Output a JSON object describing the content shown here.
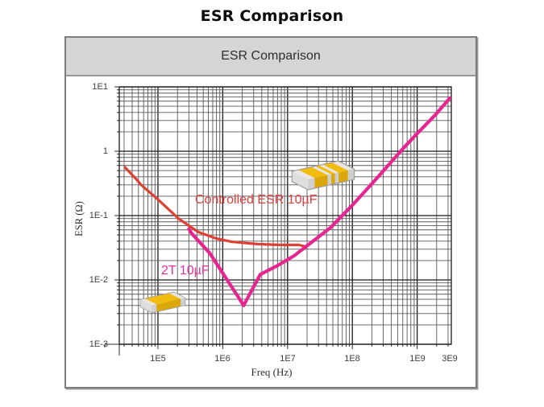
{
  "page": {
    "title": "ESR Comparison"
  },
  "panel": {
    "header": "ESR Comparison"
  },
  "colors": {
    "controlled_esr": "#dd4135",
    "controlled_esr_label": "#e04040",
    "two_t": "#e62590",
    "two_t_label": "#e62f9b",
    "header_bg": "#d5d5d5",
    "grid_major": "#1a1a1a",
    "grid_minor": "#585858"
  },
  "chart_data": {
    "type": "line",
    "title": "ESR Comparison",
    "x_axis": {
      "label": "Freq (Hz)",
      "scale": "log",
      "range": [
        25000,
        3300000000
      ],
      "ticks": [
        "1E5",
        "1E6",
        "1E7",
        "1E8",
        "1E9",
        "3E9"
      ]
    },
    "y_axis": {
      "label": "ESR (Ω)",
      "scale": "log",
      "range": [
        0.001,
        10
      ],
      "ticks": [
        "1E1",
        "1",
        "1E-1",
        "1E-2",
        "1E-3"
      ]
    },
    "grid": "log-log minor gridlines on",
    "legend_position": "inline annotations",
    "series": [
      {
        "name": "Controlled ESR 10µF",
        "color": "#dd4135",
        "stroke_width": 3.2,
        "points": [
          [
            31000,
            0.56
          ],
          [
            45000,
            0.38
          ],
          [
            55000,
            0.3
          ],
          [
            100000,
            0.178
          ],
          [
            210000,
            0.089
          ],
          [
            410000,
            0.056
          ],
          [
            790000,
            0.044
          ],
          [
            1400000,
            0.039
          ],
          [
            3500000,
            0.036
          ],
          [
            8000000,
            0.035
          ],
          [
            15000000,
            0.035
          ],
          [
            19000000,
            0.033
          ]
        ]
      },
      {
        "name": "2T 10µF",
        "color": "#e62590",
        "stroke_width": 4.2,
        "points": [
          [
            300000,
            0.062
          ],
          [
            330000,
            0.053
          ],
          [
            630000,
            0.026
          ],
          [
            1100000,
            0.011
          ],
          [
            1700000,
            0.0056
          ],
          [
            2100000,
            0.004
          ],
          [
            2600000,
            0.006
          ],
          [
            3800000,
            0.0122
          ],
          [
            7100000,
            0.0168
          ],
          [
            12600000,
            0.0237
          ],
          [
            22000000,
            0.0365
          ],
          [
            46000000,
            0.065
          ],
          [
            100000000,
            0.145
          ],
          [
            250000000,
            0.4
          ],
          [
            600000000,
            1.09
          ],
          [
            1000000000,
            1.88
          ],
          [
            1900000000,
            3.65
          ],
          [
            3200000000,
            6.7
          ]
        ]
      }
    ]
  }
}
